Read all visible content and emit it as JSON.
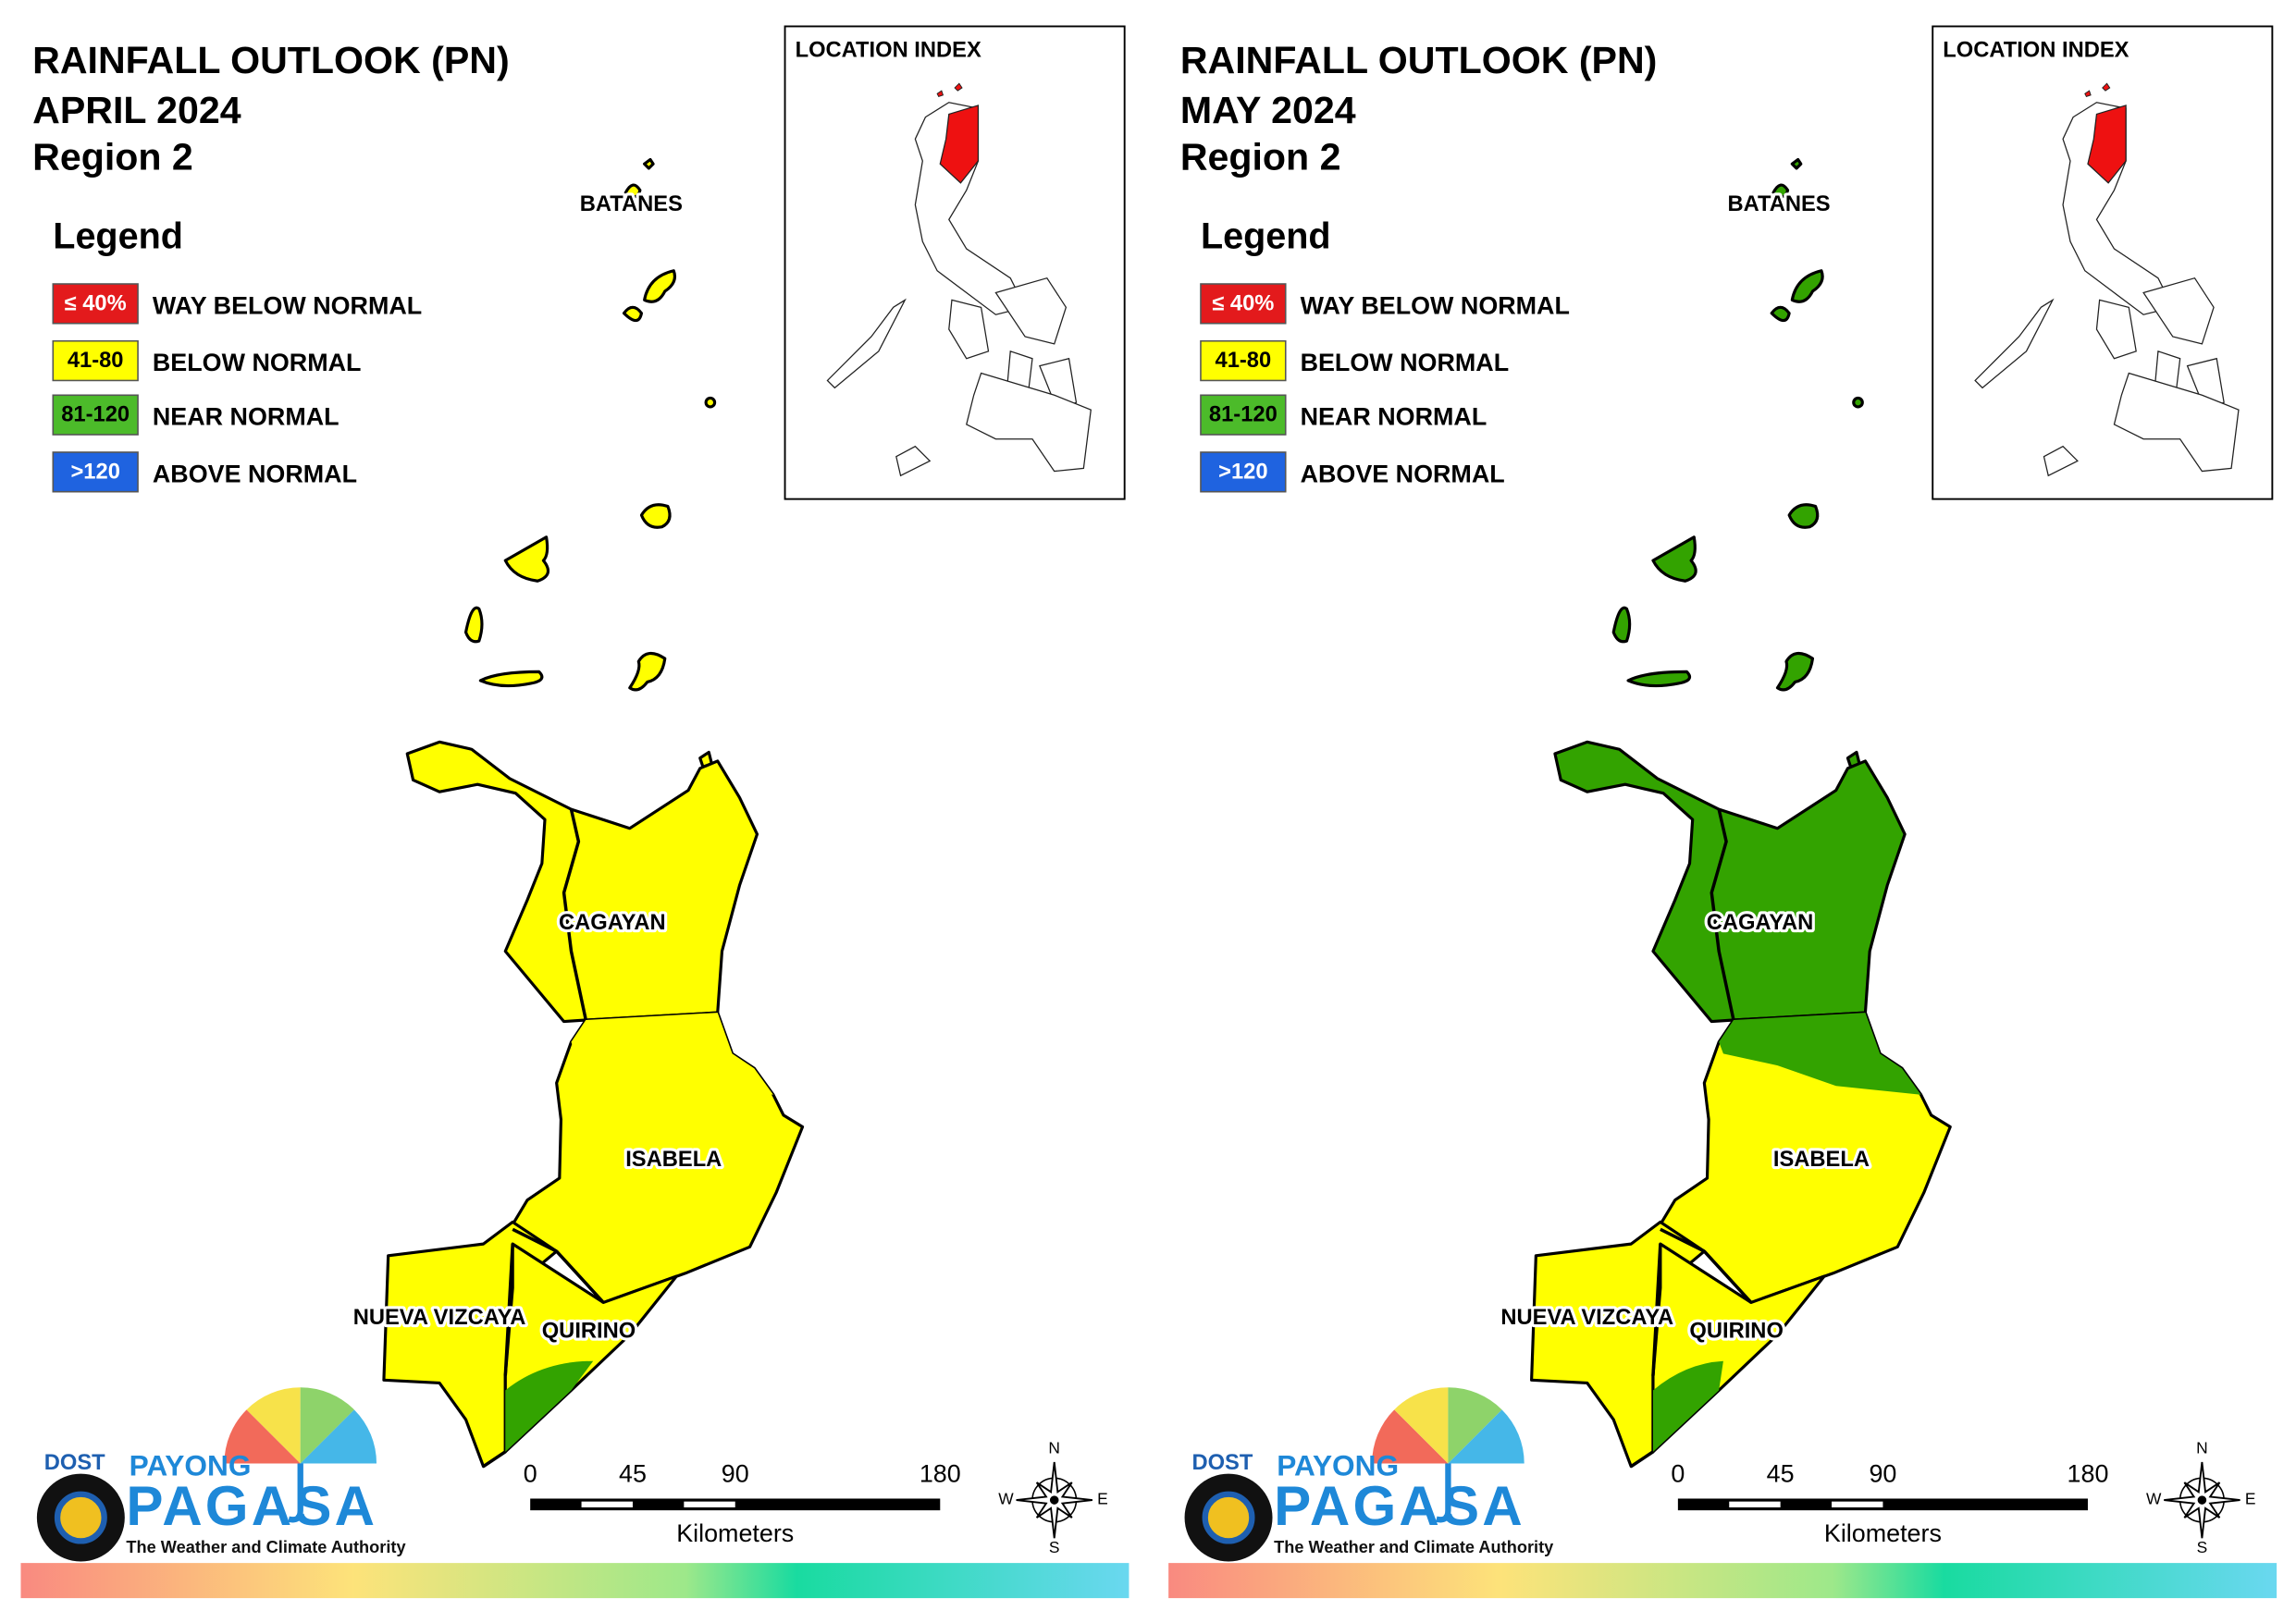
{
  "panels": [
    {
      "title": [
        "RAINFALL OUTLOOK (PN)",
        "APRIL 2024",
        "Region 2"
      ],
      "legend_title": "Legend",
      "legend": [
        {
          "swatch": "≤ 40%",
          "label": "WAY BELOW NORMAL"
        },
        {
          "swatch": "41-80",
          "label": "BELOW NORMAL"
        },
        {
          "swatch": "81-120",
          "label": "NEAR NORMAL"
        },
        {
          "swatch": ">120",
          "label": "ABOVE NORMAL"
        }
      ],
      "location_index": "LOCATION INDEX",
      "places": [
        "BATANES",
        "CAGAYAN",
        "ISABELA",
        "NUEVA VIZCAYA",
        "QUIRINO"
      ],
      "scale": [
        0,
        45,
        90,
        180
      ],
      "scale_unit": "Kilometers",
      "compass": [
        "N",
        "W",
        "E",
        "S"
      ],
      "logo": {
        "agency": "DOST",
        "brand_top": "PAYONG",
        "brand": "PAGASA",
        "tagline": "The Weather and Climate Authority"
      }
    },
    {
      "title": [
        "RAINFALL OUTLOOK (PN)",
        "MAY 2024",
        "Region 2"
      ],
      "legend_title": "Legend",
      "legend": [
        {
          "swatch": "≤ 40%",
          "label": "WAY BELOW NORMAL"
        },
        {
          "swatch": "41-80",
          "label": "BELOW NORMAL"
        },
        {
          "swatch": "81-120",
          "label": "NEAR NORMAL"
        },
        {
          "swatch": ">120",
          "label": "ABOVE NORMAL"
        }
      ],
      "location_index": "LOCATION INDEX",
      "places": [
        "BATANES",
        "CAGAYAN",
        "ISABELA",
        "NUEVA VIZCAYA",
        "QUIRINO"
      ],
      "scale": [
        0,
        45,
        90,
        180
      ],
      "scale_unit": "Kilometers",
      "compass": [
        "N",
        "W",
        "E",
        "S"
      ],
      "logo": {
        "agency": "DOST",
        "brand_top": "PAYONG",
        "brand": "PAGASA",
        "tagline": "The Weather and Climate Authority"
      }
    }
  ]
}
